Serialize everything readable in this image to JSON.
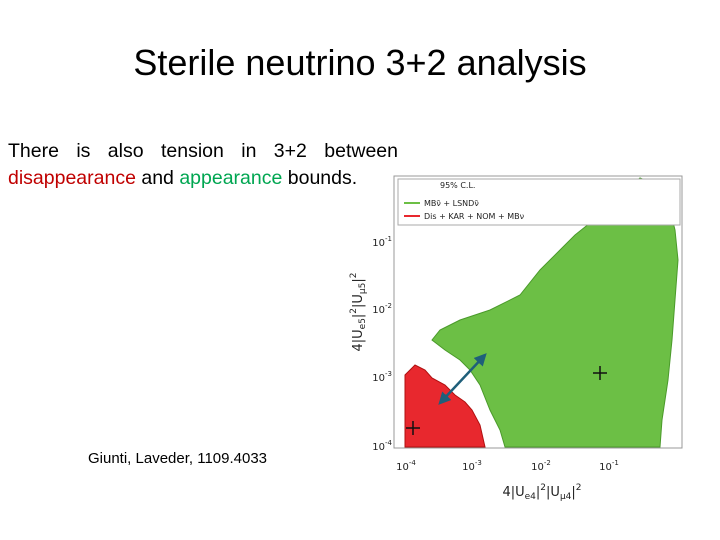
{
  "title": "Sterile  neutrino 3+2 analysis",
  "body": {
    "line1": "There  is  also  tension  in  3+2  between",
    "line2": [
      "disappearance",
      "and",
      "appearance",
      "bounds."
    ]
  },
  "citation": "Giunti, Laveder, 1109.4033",
  "figure": {
    "cl_label": "95% C.L.",
    "legend": [
      "MBν̄ + LSNDν̄",
      "Dis + KAR + NOM + MBν"
    ],
    "yticks": [
      {
        "base": "10",
        "exp": "-1"
      },
      {
        "base": "10",
        "exp": "-2"
      },
      {
        "base": "10",
        "exp": "-3"
      },
      {
        "base": "10",
        "exp": "-4"
      }
    ],
    "xticks": [
      {
        "base": "10",
        "exp": "-4"
      },
      {
        "base": "10",
        "exp": "-3"
      },
      {
        "base": "10",
        "exp": "-2"
      },
      {
        "base": "10",
        "exp": "-1"
      }
    ],
    "ylabel": [
      "4|U",
      "e5",
      "|",
      "2",
      "|U",
      "μ5",
      "|",
      "2"
    ],
    "xlabel": [
      "4|U",
      "e4",
      "|",
      "2",
      "|U",
      "μ4",
      "|",
      "2"
    ]
  }
}
